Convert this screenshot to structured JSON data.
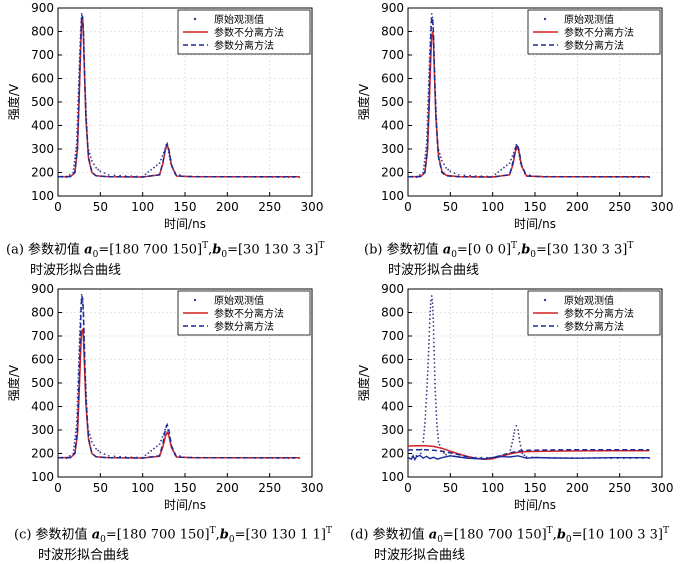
{
  "legend": {
    "observed": "原始观测值",
    "nonsep": "参数不分离方法",
    "sep": "参数分离方法"
  },
  "colors": {
    "observed": "#3a3a8a",
    "nonsep": "#d42020",
    "sep": "#1a2a9a"
  },
  "chart_data": [
    {
      "id": "a",
      "type": "line",
      "xlabel": "时间/ns",
      "ylabel": "强度/V",
      "xlim": [
        0,
        300
      ],
      "ylim": [
        100,
        900
      ],
      "xticks": [
        0,
        50,
        100,
        150,
        200,
        250,
        300
      ],
      "yticks": [
        100,
        200,
        300,
        400,
        500,
        600,
        700,
        800,
        900
      ],
      "grid": true,
      "legend_position": "top-right",
      "caption": {
        "prefix": "(a) 参数初值",
        "a_val": "=[180 700 150]",
        "b_val": "=[30 130 3 3]",
        "line2": "时波形拟合曲线"
      },
      "series": [
        {
          "name": "原始观测值",
          "style": "dots",
          "x": [
            0,
            10,
            18,
            22,
            25,
            27,
            28,
            29,
            30,
            32,
            35,
            40,
            45,
            50,
            60,
            80,
            100,
            120,
            125,
            128,
            130,
            133,
            138,
            150,
            180,
            220,
            260,
            285
          ],
          "y": [
            182,
            180,
            200,
            320,
            640,
            820,
            875,
            860,
            800,
            560,
            310,
            250,
            220,
            205,
            190,
            185,
            183,
            240,
            285,
            318,
            300,
            240,
            195,
            184,
            182,
            181,
            180,
            180
          ]
        },
        {
          "name": "参数不分离方法",
          "style": "solid",
          "x": [
            0,
            15,
            20,
            23,
            25,
            27,
            28,
            29,
            30,
            31,
            33,
            36,
            40,
            45,
            60,
            100,
            120,
            124,
            127,
            129,
            131,
            134,
            140,
            160,
            285
          ],
          "y": [
            182,
            183,
            200,
            300,
            520,
            760,
            845,
            850,
            790,
            660,
            430,
            260,
            200,
            186,
            182,
            181,
            190,
            240,
            300,
            318,
            295,
            230,
            185,
            182,
            182
          ]
        },
        {
          "name": "参数分离方法",
          "style": "dashed",
          "x": [
            0,
            15,
            20,
            23,
            25,
            27,
            28,
            29,
            30,
            31,
            33,
            36,
            40,
            45,
            60,
            100,
            120,
            124,
            127,
            129,
            131,
            134,
            140,
            160,
            285
          ],
          "y": [
            182,
            183,
            200,
            310,
            540,
            790,
            870,
            860,
            800,
            670,
            440,
            265,
            200,
            186,
            182,
            181,
            190,
            245,
            305,
            322,
            298,
            232,
            185,
            182,
            182
          ]
        }
      ]
    },
    {
      "id": "b",
      "type": "line",
      "xlabel": "时间/ns",
      "ylabel": "强度/V",
      "xlim": [
        0,
        300
      ],
      "ylim": [
        100,
        900
      ],
      "xticks": [
        0,
        50,
        100,
        150,
        200,
        250,
        300
      ],
      "yticks": [
        100,
        200,
        300,
        400,
        500,
        600,
        700,
        800,
        900
      ],
      "grid": true,
      "legend_position": "top-right",
      "caption": {
        "prefix": "(b) 参数初值",
        "a_val": "=[0 0 0]",
        "b_val": "=[30 130 3 3]",
        "line2": "时波形拟合曲线"
      },
      "series": [
        {
          "name": "原始观测值",
          "style": "dots",
          "x": [
            0,
            10,
            18,
            22,
            25,
            27,
            28,
            29,
            30,
            32,
            35,
            40,
            45,
            50,
            60,
            80,
            100,
            120,
            125,
            128,
            130,
            133,
            138,
            150,
            180,
            220,
            260,
            285
          ],
          "y": [
            182,
            180,
            200,
            320,
            640,
            820,
            875,
            860,
            800,
            560,
            310,
            250,
            220,
            205,
            190,
            185,
            183,
            240,
            285,
            318,
            300,
            240,
            195,
            184,
            182,
            181,
            180,
            180
          ]
        },
        {
          "name": "参数不分离方法",
          "style": "solid",
          "x": [
            0,
            15,
            20,
            23,
            25,
            27,
            28,
            29,
            30,
            31,
            33,
            36,
            40,
            45,
            60,
            100,
            120,
            124,
            127,
            129,
            131,
            134,
            140,
            160,
            285
          ],
          "y": [
            182,
            183,
            200,
            290,
            480,
            700,
            780,
            800,
            770,
            650,
            430,
            270,
            205,
            188,
            182,
            181,
            190,
            235,
            290,
            310,
            290,
            228,
            185,
            182,
            182
          ]
        },
        {
          "name": "参数分离方法",
          "style": "dashed",
          "x": [
            0,
            15,
            20,
            23,
            25,
            27,
            28,
            29,
            30,
            31,
            33,
            36,
            40,
            45,
            60,
            100,
            120,
            124,
            127,
            129,
            131,
            134,
            140,
            160,
            285
          ],
          "y": [
            182,
            183,
            200,
            310,
            540,
            790,
            860,
            855,
            800,
            670,
            440,
            265,
            200,
            186,
            182,
            181,
            190,
            245,
            305,
            320,
            298,
            232,
            185,
            182,
            182
          ]
        }
      ]
    },
    {
      "id": "c",
      "type": "line",
      "xlabel": "时间/ns",
      "ylabel": "强度/V",
      "xlim": [
        0,
        300
      ],
      "ylim": [
        100,
        900
      ],
      "xticks": [
        0,
        50,
        100,
        150,
        200,
        250,
        300
      ],
      "yticks": [
        100,
        200,
        300,
        400,
        500,
        600,
        700,
        800,
        900
      ],
      "grid": true,
      "legend_position": "top-right",
      "caption": {
        "prefix": "(c) 参数初值",
        "a_val": "=[180 700 150]",
        "b_val": "=[30 130 1 1]",
        "line2": "时波形拟合曲线"
      },
      "series": [
        {
          "name": "原始观测值",
          "style": "dots",
          "x": [
            0,
            10,
            18,
            22,
            25,
            27,
            28,
            29,
            30,
            32,
            35,
            40,
            45,
            50,
            60,
            80,
            100,
            120,
            125,
            128,
            130,
            133,
            138,
            150,
            180,
            220,
            260,
            285
          ],
          "y": [
            182,
            180,
            200,
            320,
            640,
            820,
            875,
            860,
            800,
            560,
            310,
            250,
            220,
            205,
            190,
            185,
            183,
            240,
            285,
            318,
            300,
            240,
            195,
            184,
            182,
            181,
            180,
            180
          ]
        },
        {
          "name": "参数不分离方法",
          "style": "solid",
          "x": [
            0,
            15,
            20,
            23,
            25,
            27,
            28,
            29,
            30,
            31,
            33,
            36,
            40,
            45,
            60,
            100,
            120,
            124,
            127,
            129,
            131,
            134,
            140,
            160,
            285
          ],
          "y": [
            182,
            183,
            200,
            280,
            460,
            660,
            720,
            730,
            700,
            600,
            410,
            260,
            200,
            186,
            182,
            181,
            188,
            230,
            275,
            290,
            275,
            225,
            185,
            182,
            182
          ]
        },
        {
          "name": "参数分离方法",
          "style": "dashed",
          "x": [
            0,
            15,
            20,
            23,
            25,
            27,
            28,
            29,
            30,
            31,
            33,
            36,
            40,
            45,
            60,
            100,
            120,
            124,
            127,
            129,
            131,
            134,
            140,
            160,
            285
          ],
          "y": [
            182,
            183,
            200,
            310,
            540,
            790,
            870,
            860,
            800,
            670,
            440,
            265,
            200,
            186,
            182,
            181,
            190,
            245,
            305,
            322,
            298,
            232,
            185,
            182,
            182
          ]
        }
      ]
    },
    {
      "id": "d",
      "type": "line",
      "xlabel": "时间/ns",
      "ylabel": "强度/V",
      "xlim": [
        0,
        300
      ],
      "ylim": [
        100,
        900
      ],
      "xticks": [
        0,
        50,
        100,
        150,
        200,
        250,
        300
      ],
      "yticks": [
        100,
        200,
        300,
        400,
        500,
        600,
        700,
        800,
        900
      ],
      "grid": true,
      "legend_position": "top-right",
      "caption": {
        "prefix": "(d) 参数初值",
        "a_val": "=[180 700 150]",
        "b_val": "=[10 100 3 3]",
        "line2": "时波形拟合曲线"
      },
      "series": [
        {
          "name": "原始观测值",
          "style": "dots",
          "x": [
            0,
            5,
            10,
            15,
            18,
            20,
            22,
            24,
            25,
            26,
            27,
            28,
            29,
            30,
            31,
            32,
            34,
            36,
            40,
            45,
            50,
            60,
            80,
            100,
            120,
            124,
            126,
            128,
            130,
            132,
            135,
            140,
            160,
            200,
            240,
            285
          ],
          "y": [
            182,
            185,
            190,
            200,
            250,
            330,
            450,
            600,
            700,
            790,
            850,
            870,
            840,
            760,
            620,
            480,
            330,
            250,
            210,
            195,
            190,
            186,
            183,
            182,
            200,
            260,
            300,
            318,
            300,
            250,
            200,
            185,
            182,
            181,
            180,
            180
          ]
        },
        {
          "name": "参数不分离方法",
          "style": "solid",
          "x": [
            0,
            10,
            20,
            30,
            40,
            50,
            60,
            70,
            80,
            90,
            100,
            110,
            120,
            130,
            140,
            160,
            200,
            240,
            285
          ],
          "y": [
            232,
            233,
            233,
            230,
            222,
            210,
            198,
            188,
            180,
            175,
            178,
            188,
            198,
            205,
            208,
            210,
            211,
            212,
            212
          ]
        },
        {
          "name": "参数分离方法",
          "style": "dashed",
          "x": [
            0,
            10,
            20,
            30,
            40,
            50,
            60,
            70,
            80,
            90,
            100,
            110,
            120,
            130,
            140,
            160,
            200,
            240,
            285
          ],
          "y": [
            215,
            216,
            216,
            214,
            210,
            203,
            195,
            186,
            180,
            178,
            182,
            192,
            202,
            210,
            213,
            215,
            216,
            216,
            216
          ]
        },
        {
          "name": "",
          "style": "solid-dark",
          "x": [
            0,
            4,
            6,
            8,
            10,
            14,
            18,
            22,
            26,
            30,
            35,
            40,
            50,
            60,
            70,
            80,
            90,
            100,
            110,
            120,
            130,
            140,
            150,
            170,
            200,
            240,
            285
          ],
          "y": [
            182,
            176,
            190,
            174,
            186,
            192,
            180,
            188,
            178,
            184,
            176,
            182,
            190,
            185,
            180,
            178,
            177,
            183,
            187,
            185,
            190,
            180,
            183,
            181,
            180,
            182,
            182
          ]
        }
      ]
    }
  ]
}
